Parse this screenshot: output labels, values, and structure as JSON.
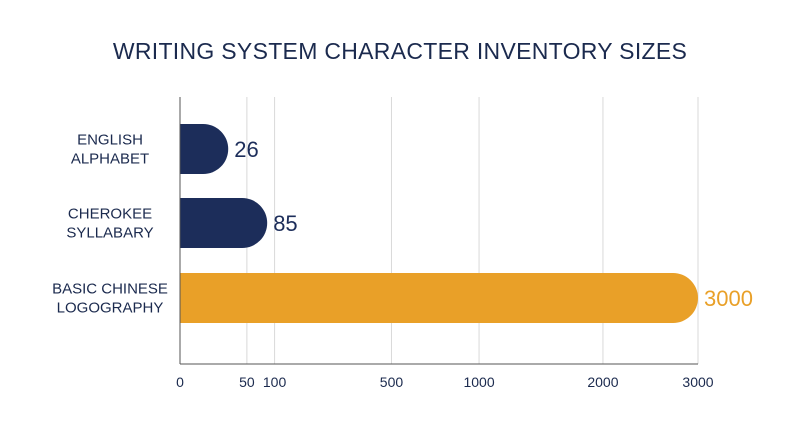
{
  "colors": {
    "title": "#1b2a4e",
    "text": "#1b2a4e",
    "grid": "#d9d9d9",
    "axis": "#555555",
    "bar_default": "#1c2d5a",
    "bar_highlight": "#e9a028"
  },
  "chart_data": {
    "type": "bar",
    "orientation": "horizontal",
    "title": "WRITING SYSTEM CHARACTER INVENTORY SIZES",
    "categories": [
      [
        "ENGLISH",
        "ALPHABET"
      ],
      [
        "CHEROKEE",
        "SYLLABARY"
      ],
      [
        "BASIC CHINESE",
        "LOGOGRAPHY"
      ]
    ],
    "values": [
      26,
      85,
      3000
    ],
    "value_labels": [
      "26",
      "85",
      "3000"
    ],
    "highlight_index": 2,
    "xlim": [
      0,
      3000
    ],
    "x_scale": "sqrt",
    "x_ticks": [
      0,
      50,
      100,
      500,
      1000,
      2000,
      3000
    ],
    "x_tick_labels": [
      "0",
      "50",
      "100",
      "500",
      "1000",
      "2000",
      "3000"
    ],
    "grid": true
  }
}
